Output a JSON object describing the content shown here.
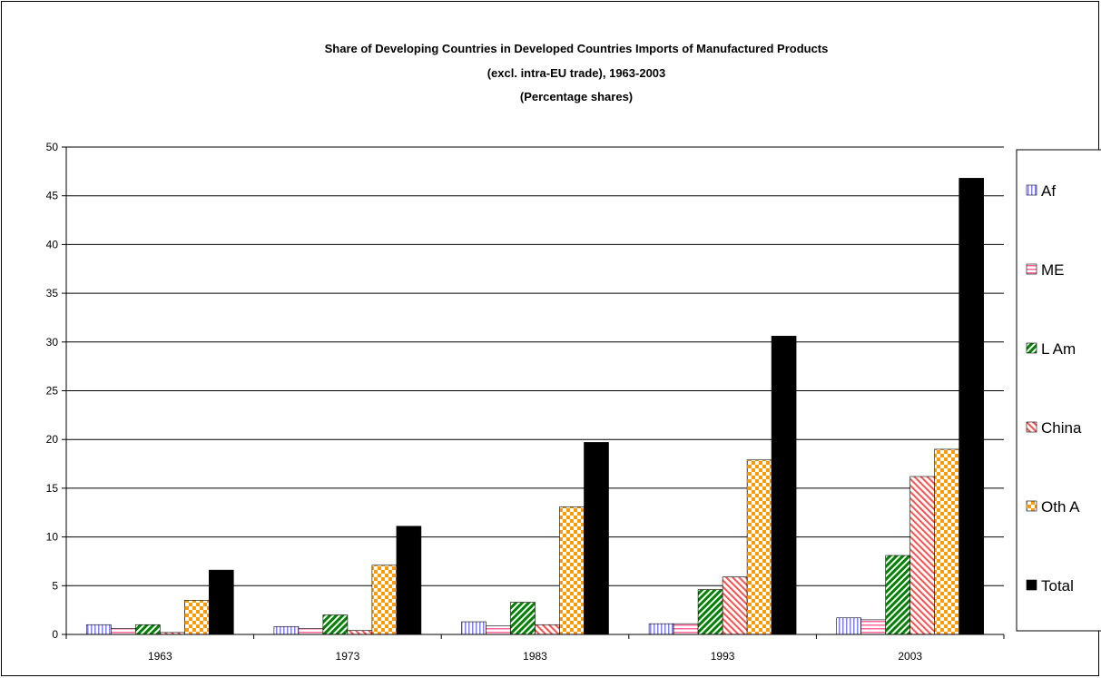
{
  "chart_data": {
    "type": "bar",
    "title_lines": [
      "Share of Developing Countries in Developed Countries Imports of Manufactured Products",
      "(excl. intra-EU trade), 1963-2003",
      "(Percentage shares)"
    ],
    "categories": [
      "1963",
      "1973",
      "1983",
      "1993",
      "2003"
    ],
    "ylim": [
      0,
      50
    ],
    "yticks": [
      0,
      5,
      10,
      15,
      20,
      25,
      30,
      35,
      40,
      45,
      50
    ],
    "grid": true,
    "legend_position": "right",
    "series": [
      {
        "name": "Af",
        "values": [
          1.0,
          0.8,
          1.3,
          1.1,
          1.7
        ],
        "pattern": "vertical-lines",
        "color": "#8080ff"
      },
      {
        "name": "ME",
        "values": [
          0.6,
          0.6,
          0.9,
          1.1,
          1.5
        ],
        "pattern": "horizontal-lines",
        "color": "#ff6699"
      },
      {
        "name": "L Am",
        "values": [
          1.0,
          2.0,
          3.3,
          4.6,
          8.1
        ],
        "pattern": "diagonal-lines",
        "color": "#008000"
      },
      {
        "name": "China",
        "values": [
          0.2,
          0.4,
          1.0,
          5.9,
          16.2
        ],
        "pattern": "diagonal-lines-light",
        "color": "#ff5050"
      },
      {
        "name": "Oth A",
        "values": [
          3.5,
          7.1,
          13.1,
          17.9,
          19.0
        ],
        "pattern": "checker",
        "color": "#ff9900"
      },
      {
        "name": "Total",
        "values": [
          6.6,
          11.1,
          19.7,
          30.6,
          46.8
        ],
        "pattern": "solid",
        "color": "#000000"
      }
    ]
  }
}
